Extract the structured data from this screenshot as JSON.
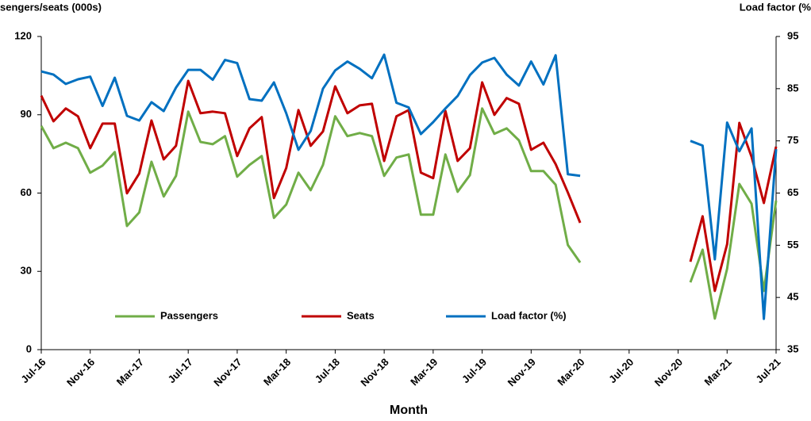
{
  "chart_data": {
    "type": "line",
    "y_label": "sengers/seats (000s)",
    "y2_label": "Load factor (%",
    "x_label": "Month",
    "categories": [
      "Jul-16",
      null,
      null,
      null,
      "Nov-16",
      null,
      null,
      null,
      "Mar-17",
      null,
      null,
      null,
      "Jul-17",
      null,
      null,
      null,
      "Nov-17",
      null,
      null,
      null,
      "Mar-18",
      null,
      null,
      null,
      "Jul-18",
      null,
      null,
      null,
      "Nov-18",
      null,
      null,
      null,
      "Mar-19",
      null,
      null,
      null,
      "Jul-19",
      null,
      null,
      null,
      "Nov-19",
      null,
      null,
      null,
      "Mar-20",
      null,
      null,
      null,
      "Jul-20",
      null,
      null,
      null,
      "Nov-20",
      null,
      null,
      null,
      "Mar-21",
      null,
      null,
      null,
      "Jul-21"
    ],
    "series": [
      {
        "name": "Passengers",
        "color": "#70ad47",
        "values": [
          85.7,
          77.2,
          79.3,
          77.2,
          67.8,
          70.5,
          75.7,
          47.4,
          52.6,
          72,
          58.7,
          66.6,
          91.2,
          79.6,
          78.7,
          81.8,
          66.3,
          70.8,
          74.2,
          50.5,
          55.6,
          67.8,
          61.1,
          70.8,
          89.4,
          81.8,
          83,
          81.8,
          66.6,
          73.6,
          74.8,
          51.7,
          51.7,
          74.8,
          60.5,
          66.9,
          92.4,
          82.7,
          84.8,
          80.2,
          68.4,
          68.4,
          63.2,
          40.1,
          33.4,
          null,
          null,
          null,
          null,
          null,
          null,
          null,
          null,
          25.8,
          38.3,
          11.9,
          31,
          63.5,
          55.9,
          22.5,
          57.1
        ]
      },
      {
        "name": "Seats",
        "color": "#c00000",
        "values": [
          97.3,
          87.5,
          92.4,
          89.4,
          77.2,
          86.6,
          86.6,
          59.9,
          67.5,
          87.8,
          72.9,
          78.1,
          103,
          90.6,
          91.2,
          90.6,
          74.2,
          84.8,
          89.1,
          58.1,
          69.6,
          91.8,
          78.1,
          83.6,
          100.9,
          90.6,
          93.6,
          94.2,
          72.3,
          89.4,
          91.8,
          67.8,
          65.7,
          91.5,
          72.3,
          77.2,
          102.4,
          90,
          96.4,
          94.2,
          76.6,
          79.3,
          71.1,
          60.2,
          48.6,
          null,
          null,
          null,
          null,
          null,
          null,
          null,
          null,
          33.7,
          51.1,
          22.5,
          40.4,
          86.9,
          73.9,
          56.2,
          77.8
        ]
      },
      {
        "name": "Load factor (%)",
        "color": "#0070c0",
        "axis": "y2",
        "values": [
          88.3,
          87.7,
          85.9,
          86.8,
          87.3,
          81.7,
          87.1,
          79.8,
          78.9,
          82.4,
          80.7,
          85.2,
          88.6,
          88.6,
          86.7,
          90.5,
          89.9,
          83,
          82.7,
          86.2,
          80.3,
          73.3,
          76.9,
          85,
          88.5,
          90.2,
          88.8,
          87,
          91.5,
          82.3,
          81.4,
          76.3,
          78.6,
          81.2,
          83.6,
          87.6,
          90,
          90.9,
          87.7,
          85.6,
          90.2,
          85.8,
          91.4,
          68.6,
          68.3,
          null,
          null,
          null,
          null,
          null,
          null,
          null,
          null,
          75,
          74.1,
          52.3,
          78.5,
          73,
          77.4,
          40.9,
          73.4
        ]
      }
    ],
    "ylim": [
      0,
      120
    ],
    "yticks": [
      0,
      30,
      60,
      90,
      120
    ],
    "y2lim": [
      35,
      95
    ],
    "y2ticks": [
      35,
      45,
      55,
      65,
      75,
      85,
      95
    ],
    "legend": "bottom"
  }
}
